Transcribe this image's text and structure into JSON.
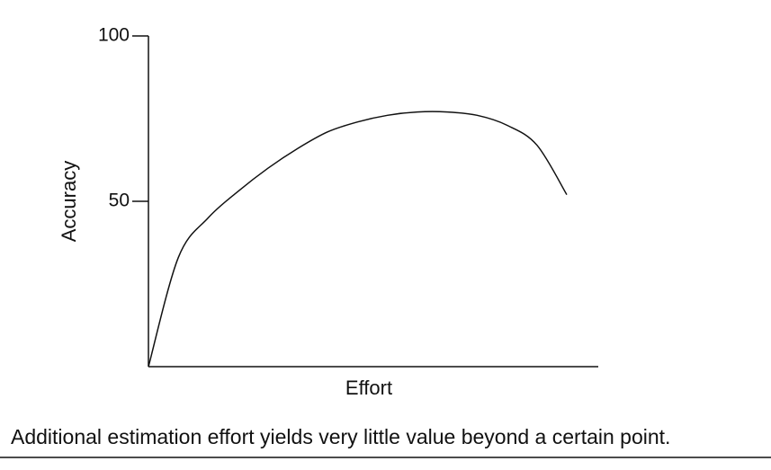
{
  "chart_data": {
    "type": "line",
    "caption": "Additional estimation effort yields very little value beyond a certain point.",
    "xlabel": "Effort",
    "ylabel": "Accuracy",
    "categories": [
      null,
      null,
      null,
      null,
      null,
      null,
      null,
      null,
      null,
      null,
      null,
      null,
      null,
      null,
      null
    ],
    "values": [
      0,
      33,
      45,
      53,
      60,
      66,
      71,
      74,
      76,
      77,
      77,
      76,
      73,
      67,
      52
    ],
    "color": "#111111",
    "ylim": [
      0,
      100
    ],
    "yticks": [
      50,
      100
    ],
    "grid": false
  }
}
